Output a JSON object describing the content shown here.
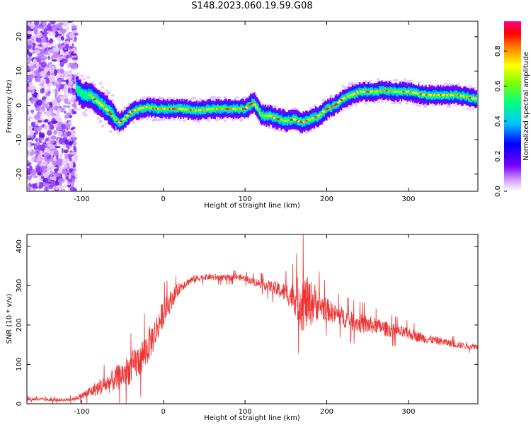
{
  "figure_title": "S148.2023.060.19.59.G08",
  "chart_data": [
    {
      "id": "spectrogram",
      "type": "heatmap",
      "title": "",
      "xlabel": "Height of straight line (km)",
      "ylabel": "Frequency (Hz)",
      "xlim": [
        -167,
        385
      ],
      "ylim": [
        -25,
        24.5
      ],
      "xticks": [
        -100,
        0,
        100,
        200,
        300
      ],
      "yticks": [
        -20,
        -10,
        0,
        10,
        20
      ],
      "colorbar": {
        "label": "Normalized spectral amplitude",
        "ticks": [
          0.0,
          0.2,
          0.4,
          0.6,
          0.8
        ],
        "range": [
          0,
          0.97
        ],
        "colormap": "rainbow"
      },
      "ridge_frequency_track": {
        "x": [
          -107,
          -100,
          -90,
          -80,
          -70,
          -62,
          -55,
          -48,
          -40,
          -30,
          -20,
          -10,
          0,
          20,
          40,
          60,
          80,
          100,
          105,
          110,
          115,
          120,
          130,
          140,
          150,
          160,
          170,
          180,
          190,
          200,
          210,
          220,
          230,
          240,
          250,
          260,
          270,
          280,
          290,
          300,
          310,
          320,
          340,
          360,
          380
        ],
        "y": [
          5,
          3,
          3,
          1,
          -1,
          -3,
          -5,
          -4,
          -2,
          -1,
          -0.5,
          -1,
          -1,
          -1,
          -1.5,
          -1,
          -1,
          -1,
          0,
          1,
          -1,
          -3,
          -3,
          -4,
          -4.5,
          -4,
          -5,
          -4,
          -3,
          -1,
          0,
          2,
          3,
          4,
          4,
          4,
          4.5,
          4,
          4,
          4,
          3.5,
          3,
          3,
          3,
          2
        ]
      }
    },
    {
      "id": "snr",
      "type": "line",
      "title": "",
      "xlabel": "Height of straight line (km)",
      "ylabel": "SNR (10 * v/v)",
      "xlim": [
        -167,
        385
      ],
      "ylim": [
        0,
        430
      ],
      "xticks": [
        -100,
        0,
        100,
        200,
        300
      ],
      "yticks": [
        0,
        100,
        200,
        300,
        400
      ],
      "series": [
        {
          "color": "#ee3333",
          "x": [
            -167,
            -140,
            -120,
            -110,
            -100,
            -90,
            -80,
            -70,
            -60,
            -50,
            -40,
            -30,
            -20,
            -10,
            0,
            10,
            20,
            30,
            40,
            50,
            60,
            70,
            80,
            90,
            100,
            110,
            120,
            130,
            140,
            150,
            160,
            165,
            170,
            175,
            180,
            185,
            190,
            200,
            210,
            220,
            230,
            240,
            250,
            260,
            270,
            280,
            290,
            300,
            310,
            320,
            330,
            340,
            350,
            360,
            370,
            385
          ],
          "y": [
            12,
            10,
            10,
            12,
            20,
            30,
            40,
            50,
            60,
            75,
            90,
            110,
            140,
            180,
            230,
            265,
            295,
            310,
            318,
            322,
            322,
            320,
            320,
            322,
            318,
            310,
            305,
            298,
            290,
            282,
            270,
            265,
            260,
            255,
            255,
            260,
            250,
            240,
            228,
            220,
            210,
            205,
            200,
            198,
            192,
            186,
            182,
            178,
            172,
            166,
            162,
            158,
            154,
            150,
            147,
            145
          ],
          "noise_amp": [
            4,
            4,
            4,
            5,
            8,
            15,
            20,
            25,
            30,
            35,
            40,
            45,
            45,
            40,
            35,
            25,
            15,
            10,
            10,
            8,
            8,
            8,
            8,
            8,
            8,
            10,
            12,
            15,
            20,
            25,
            40,
            60,
            80,
            70,
            60,
            50,
            40,
            30,
            25,
            25,
            25,
            25,
            25,
            20,
            20,
            18,
            16,
            15,
            14,
            12,
            11,
            10,
            9,
            9,
            8,
            8
          ]
        }
      ]
    }
  ]
}
